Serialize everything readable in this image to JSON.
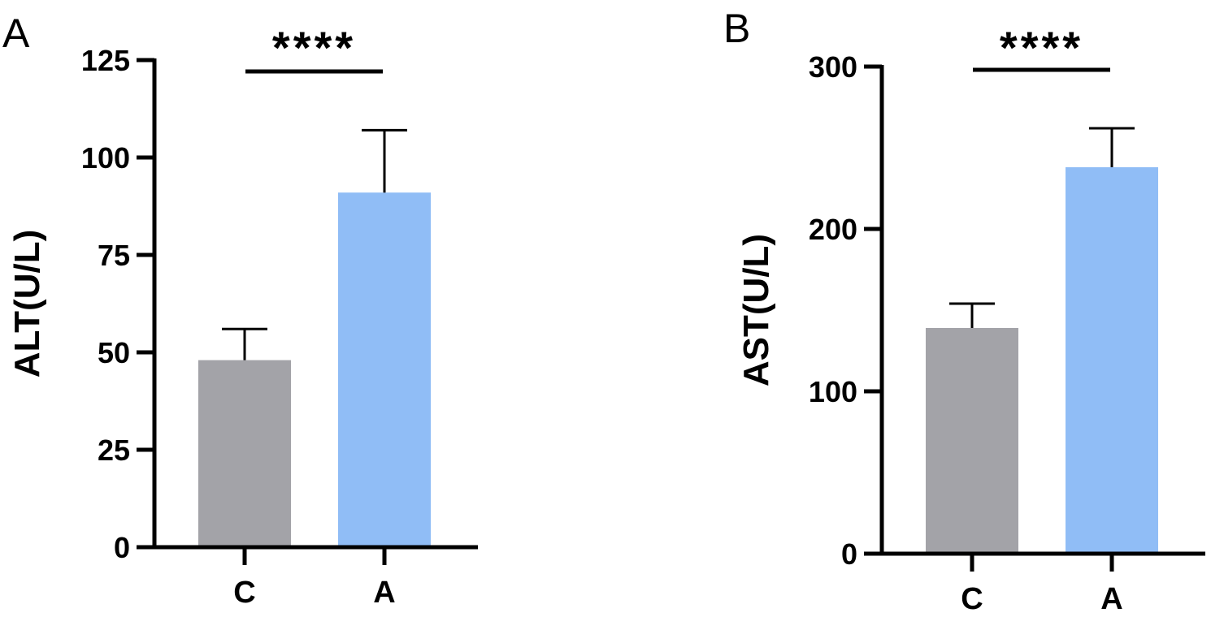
{
  "chart_data": [
    {
      "type": "bar",
      "panel_label": "A",
      "categories": [
        "C",
        "A"
      ],
      "values": [
        48,
        91
      ],
      "errors": [
        8,
        16
      ],
      "colors": [
        "#a3a3a8",
        "#90bdf6"
      ],
      "ylabel": "ALT(U/L)",
      "ylim": [
        0,
        125
      ],
      "yticks": [
        0,
        25,
        50,
        75,
        100,
        125
      ],
      "significance": "****"
    },
    {
      "type": "bar",
      "panel_label": "B",
      "categories": [
        "C",
        "A"
      ],
      "values": [
        139,
        238
      ],
      "errors": [
        15,
        24
      ],
      "colors": [
        "#a3a3a8",
        "#90bdf6"
      ],
      "ylabel": "AST(U/L)",
      "ylim": [
        0,
        300
      ],
      "yticks": [
        0,
        100,
        200,
        300
      ],
      "significance": "****"
    }
  ]
}
